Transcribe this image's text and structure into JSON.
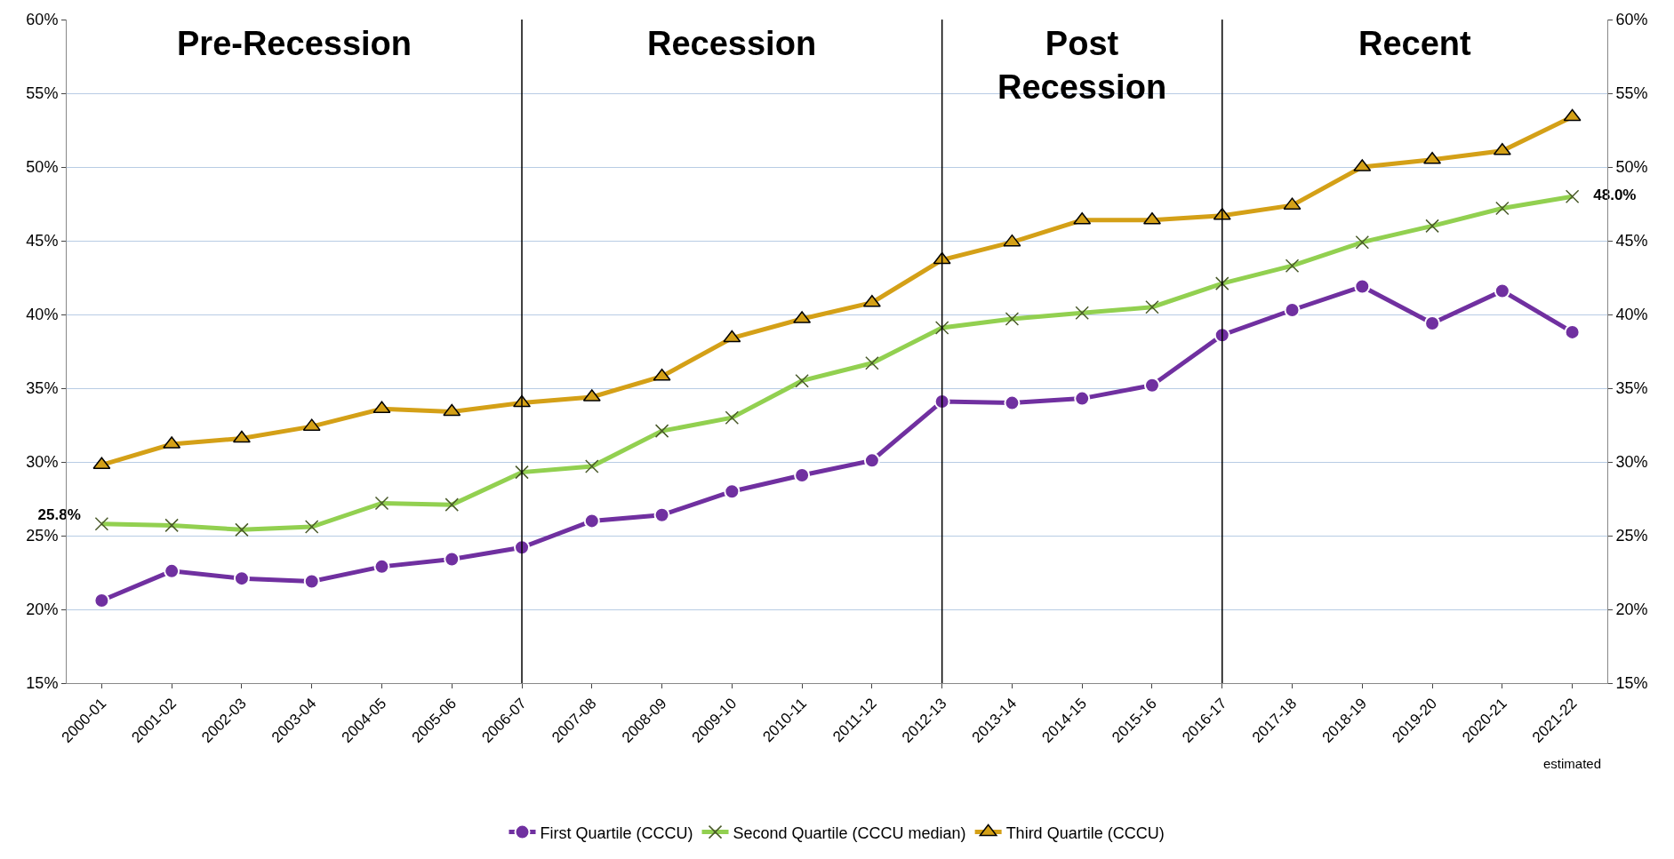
{
  "chart_data": {
    "type": "line",
    "categories": [
      "2000-01",
      "2001-02",
      "2002-03",
      "2003-04",
      "2004-05",
      "2005-06",
      "2006-07",
      "2007-08",
      "2008-09",
      "2009-10",
      "2010-11",
      "2011-12",
      "2012-13",
      "2013-14",
      "2014-15",
      "2015-16",
      "2016-17",
      "2017-18",
      "2018-19",
      "2019-20",
      "2020-21",
      "2021-22"
    ],
    "series": [
      {
        "name": "First Quartile (CCCU)",
        "color": "#7030a0",
        "marker": "circle",
        "values": [
          20.6,
          22.6,
          22.1,
          21.9,
          22.9,
          23.4,
          24.2,
          26.0,
          26.4,
          28.0,
          29.1,
          30.1,
          34.1,
          34.0,
          34.3,
          35.2,
          38.6,
          40.3,
          41.9,
          39.4,
          41.6,
          38.8
        ]
      },
      {
        "name": "Second Quartile (CCCU median)",
        "color": "#92d050",
        "marker": "cross",
        "values": [
          25.8,
          25.7,
          25.4,
          25.6,
          27.2,
          27.1,
          29.3,
          29.7,
          32.1,
          33.0,
          35.5,
          36.7,
          39.1,
          39.7,
          40.1,
          40.5,
          42.1,
          43.3,
          44.9,
          46.0,
          47.2,
          48.0
        ]
      },
      {
        "name": "Third Quartile (CCCU)",
        "color": "#d4a017",
        "marker": "triangle",
        "values": [
          29.8,
          31.2,
          31.6,
          32.4,
          33.6,
          33.4,
          34.0,
          34.4,
          35.8,
          38.4,
          39.7,
          40.8,
          43.7,
          44.9,
          46.4,
          46.4,
          46.7,
          47.4,
          50.0,
          50.5,
          51.1,
          53.4
        ]
      }
    ],
    "ylim": [
      15,
      60
    ],
    "yticks": [
      {
        "value": 15,
        "label": "15%"
      },
      {
        "value": 20,
        "label": "20%"
      },
      {
        "value": 25,
        "label": "25%"
      },
      {
        "value": 30,
        "label": "30%"
      },
      {
        "value": 35,
        "label": "35%"
      },
      {
        "value": 40,
        "label": "40%"
      },
      {
        "value": 45,
        "label": "45%"
      },
      {
        "value": 50,
        "label": "50%"
      },
      {
        "value": 55,
        "label": "55%"
      },
      {
        "value": 60,
        "label": "60%"
      }
    ],
    "y2lim": [
      15,
      60
    ],
    "y2ticks": [
      {
        "value": 15,
        "label": "15%"
      },
      {
        "value": 20,
        "label": "20%"
      },
      {
        "value": 25,
        "label": "25%"
      },
      {
        "value": 30,
        "label": "30%"
      },
      {
        "value": 35,
        "label": "35%"
      },
      {
        "value": 40,
        "label": "40%"
      },
      {
        "value": 45,
        "label": "45%"
      },
      {
        "value": 50,
        "label": "50%"
      },
      {
        "value": 55,
        "label": "55%"
      },
      {
        "value": 60,
        "label": "60%"
      }
    ],
    "ref_lines": [
      {
        "axis": "x",
        "value": "2006-07",
        "color": "#000000"
      },
      {
        "axis": "x",
        "value": "2012-13",
        "color": "#000000"
      },
      {
        "axis": "x",
        "value": "2016-17",
        "color": "#000000"
      }
    ],
    "annotations": [
      "Pre-Recession",
      "Recession",
      "Post\nRecession",
      "Recent",
      {
        "text": "25.8%",
        "x": "2000-01",
        "y": 25.8
      },
      {
        "text": "48.0%",
        "x": "2021-22",
        "y": 48.0
      },
      "estimated"
    ],
    "grid": "y",
    "legend": "bottom",
    "line_style": "solid"
  }
}
